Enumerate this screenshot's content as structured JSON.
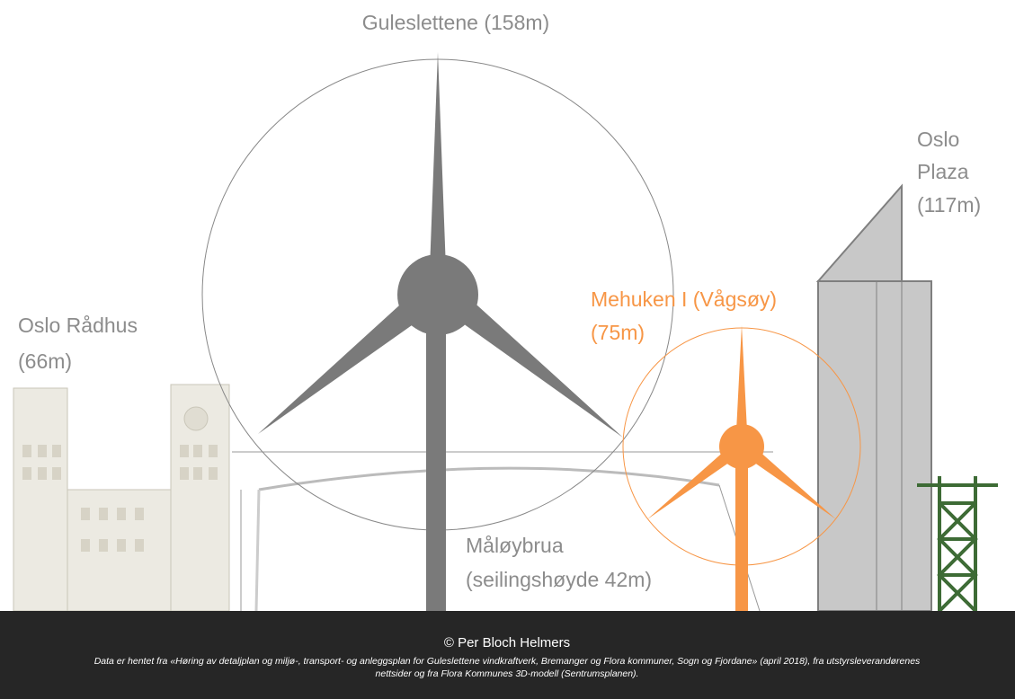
{
  "labels": {
    "guleslettene": "Guleslettene (158m)",
    "radhus": [
      "Oslo Rådhus",
      "(66m)"
    ],
    "plaza": [
      "Oslo",
      "Plaza",
      "(117m)"
    ],
    "mehuken": [
      "Mehuken I (Vågsøy)",
      "(75m)"
    ],
    "maloybrua": [
      "Måløybrua",
      "(seilingshøyde 42m)"
    ]
  },
  "footer": {
    "credit": "© Per Bloch Helmers",
    "source": [
      "Data er hentet fra «Høring av detaljplan og miljø-, transport- og anleggsplan for Guleslettene vindkraftverk, Bremanger og Flora kommuner, Sogn og Fjordane» (april 2018), fra utstyrsleverandørenes",
      "nettsider og fra Flora Kommunes 3D-modell (Sentrumsplanen)."
    ]
  }
}
